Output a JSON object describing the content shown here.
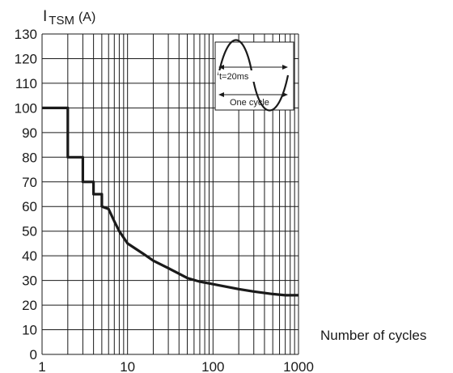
{
  "chart_data": {
    "type": "line",
    "title": "",
    "ylabel_main": "I",
    "ylabel_sub": "TSM",
    "ylabel_unit": "(A)",
    "xlabel": "Number of cycles",
    "xscale": "log",
    "xlim": [
      1,
      1000
    ],
    "ylim": [
      0,
      130
    ],
    "grid": true,
    "y_ticks": [
      0,
      10,
      20,
      30,
      40,
      50,
      60,
      70,
      80,
      90,
      100,
      110,
      120,
      130
    ],
    "x_ticks": [
      1,
      10,
      100,
      1000
    ],
    "x_tick_labels": [
      "1",
      "10",
      "100",
      "1000"
    ],
    "series": [
      {
        "x": [
          1,
          2,
          2,
          3,
          3,
          4,
          4,
          5,
          5,
          6,
          7,
          8,
          10,
          15,
          20,
          30,
          50,
          70,
          100,
          200,
          300,
          500,
          700,
          1000
        ],
        "y": [
          100,
          100,
          80,
          80,
          70,
          70,
          65,
          65,
          60,
          59,
          54,
          50,
          45,
          41,
          38,
          35,
          31,
          29.5,
          28.5,
          26.5,
          25.5,
          24.5,
          24,
          24
        ],
        "color": "#1a1a1a"
      }
    ],
    "inset": {
      "period_label": "t=20ms",
      "cycle_label": "One cycle"
    }
  }
}
